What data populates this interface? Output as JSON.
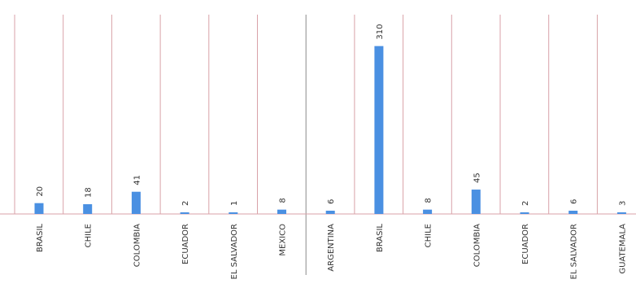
{
  "chart_data": {
    "type": "bar",
    "categories": [
      "BRASIL",
      "CHILE",
      "COLOMBIA",
      "ECUADOR",
      "EL SALVADOR",
      "MEXICO",
      "ARGENTINA",
      "BRASIL",
      "CHILE",
      "COLOMBIA",
      "ECUADOR",
      "EL SALVADOR",
      "GUATEMALA"
    ],
    "values": [
      20,
      18,
      41,
      2,
      1,
      8,
      6,
      310,
      8,
      45,
      2,
      6,
      3
    ],
    "data_labels": [
      "20",
      "18",
      "41",
      "2",
      "1",
      "8",
      "6",
      "310",
      "8",
      "45",
      "2",
      "6",
      "3"
    ],
    "groups": [
      {
        "count": 6
      },
      {
        "count": 7
      }
    ],
    "ylim": [
      0,
      350
    ],
    "grid": "vertical separators",
    "legend": "none",
    "colors": {
      "bar": "#4a90e2",
      "separator": "#d9a2a8",
      "group_divider": "#8c8c8c",
      "baseline": "#d9a2a8",
      "text": "#333333"
    }
  }
}
